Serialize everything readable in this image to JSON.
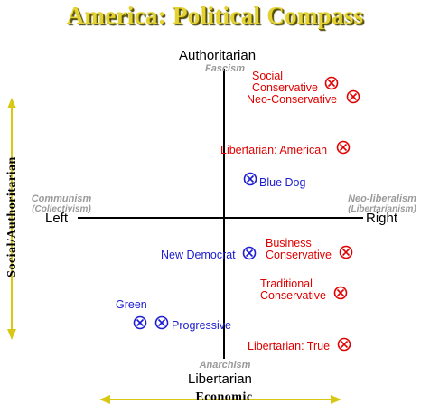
{
  "title": "America: Political Compass",
  "axes": {
    "top": "Authoritarian",
    "bottom": "Libertarian",
    "left": "Left",
    "right": "Right",
    "vertical_label": "Social/Authoritarian",
    "horizontal_label": "Economic"
  },
  "ideologies": {
    "top": "Fascism",
    "bottom": "Anarchism",
    "left": "Communism",
    "left_sub": "(Collectivism)",
    "right": "Neo-liberalism",
    "right_sub": "(Libertarianism)"
  },
  "positions": {
    "social_conservative": {
      "line1": "Social",
      "line2": "Conservative",
      "color": "#e00000"
    },
    "neo_conservative": {
      "label": "Neo-Conservative",
      "color": "#e00000"
    },
    "libertarian_american": {
      "label": "Libertarian: American",
      "color": "#e00000"
    },
    "blue_dog": {
      "label": "Blue Dog",
      "color": "#1c1cd0"
    },
    "new_democrat": {
      "label": "New Democrat",
      "color": "#1c1cd0"
    },
    "business_conservative": {
      "line1": "Business",
      "line2": "Conservative",
      "color": "#e00000"
    },
    "traditional_conservative": {
      "line1": "Traditional",
      "line2": "Conservative",
      "color": "#e00000"
    },
    "green": {
      "label": "Green",
      "color": "#1c1cd0"
    },
    "progressive": {
      "label": "Progressive",
      "color": "#1c1cd0"
    },
    "libertarian_true": {
      "label": "Libertarian: True",
      "color": "#e00000"
    }
  },
  "colors": {
    "title": "#e3d232",
    "arrow": "#d8c814",
    "axis": "#000000",
    "ideology": "#9a9a9a"
  }
}
